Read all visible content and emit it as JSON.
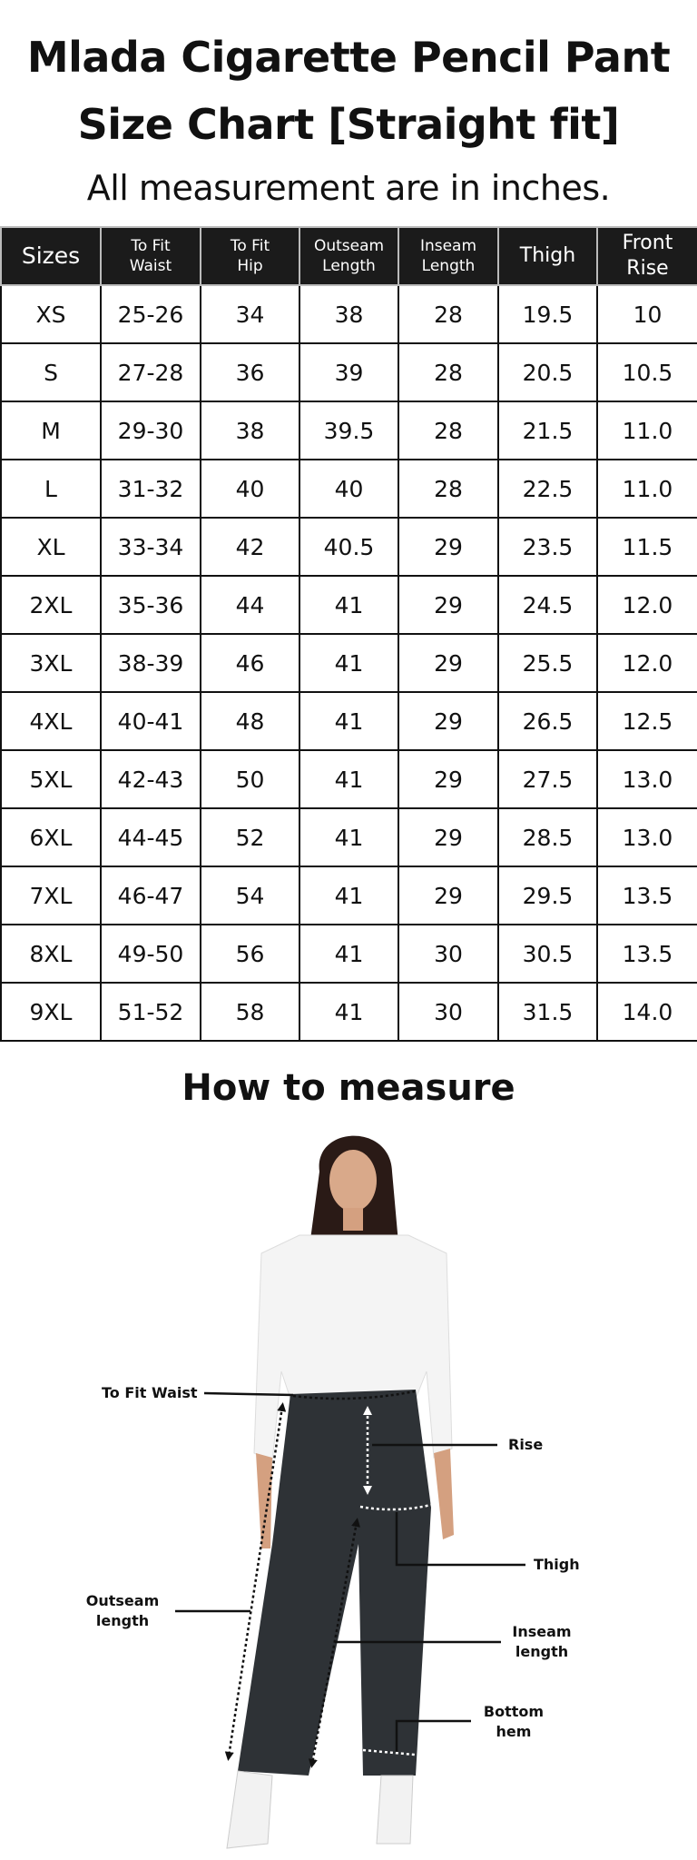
{
  "title_line1": "Mlada Cigarette Pencil Pant",
  "title_line2": "Size Chart [Straight fit]",
  "subtitle": "All measurement are in inches.",
  "table": {
    "headers": [
      {
        "line1": "Sizes",
        "line2": ""
      },
      {
        "line1": "To Fit",
        "line2": "Waist"
      },
      {
        "line1": "To Fit",
        "line2": "Hip"
      },
      {
        "line1": "Outseam",
        "line2": "Length"
      },
      {
        "line1": "Inseam",
        "line2": "Length"
      },
      {
        "line1": "Thigh",
        "line2": ""
      },
      {
        "line1": "Front",
        "line2": "Rise"
      }
    ],
    "rows": [
      [
        "XS",
        "25-26",
        "34",
        "38",
        "28",
        "19.5",
        "10"
      ],
      [
        "S",
        "27-28",
        "36",
        "39",
        "28",
        "20.5",
        "10.5"
      ],
      [
        "M",
        "29-30",
        "38",
        "39.5",
        "28",
        "21.5",
        "11.0"
      ],
      [
        "L",
        "31-32",
        "40",
        "40",
        "28",
        "22.5",
        "11.0"
      ],
      [
        "XL",
        "33-34",
        "42",
        "40.5",
        "29",
        "23.5",
        "11.5"
      ],
      [
        "2XL",
        "35-36",
        "44",
        "41",
        "29",
        "24.5",
        "12.0"
      ],
      [
        "3XL",
        "38-39",
        "46",
        "41",
        "29",
        "25.5",
        "12.0"
      ],
      [
        "4XL",
        "40-41",
        "48",
        "41",
        "29",
        "26.5",
        "12.5"
      ],
      [
        "5XL",
        "42-43",
        "50",
        "41",
        "29",
        "27.5",
        "13.0"
      ],
      [
        "6XL",
        "44-45",
        "52",
        "41",
        "29",
        "28.5",
        "13.0"
      ],
      [
        "7XL",
        "46-47",
        "54",
        "41",
        "29",
        "29.5",
        "13.5"
      ],
      [
        "8XL",
        "49-50",
        "56",
        "41",
        "30",
        "30.5",
        "13.5"
      ],
      [
        "9XL",
        "51-52",
        "58",
        "41",
        "30",
        "31.5",
        "14.0"
      ]
    ]
  },
  "how_to_measure": {
    "heading": "How to measure",
    "labels": {
      "waist": "To Fit Waist",
      "rise": "Rise",
      "thigh": "Thigh",
      "outseam_1": "Outseam",
      "outseam_2": "length",
      "inseam_1": "Inseam",
      "inseam_2": "length",
      "hem_1": "Bottom",
      "hem_2": "hem"
    }
  },
  "colors": {
    "header_bg": "#1b1b1b",
    "pants": "#2e3236",
    "shirt": "#f4f4f4"
  }
}
